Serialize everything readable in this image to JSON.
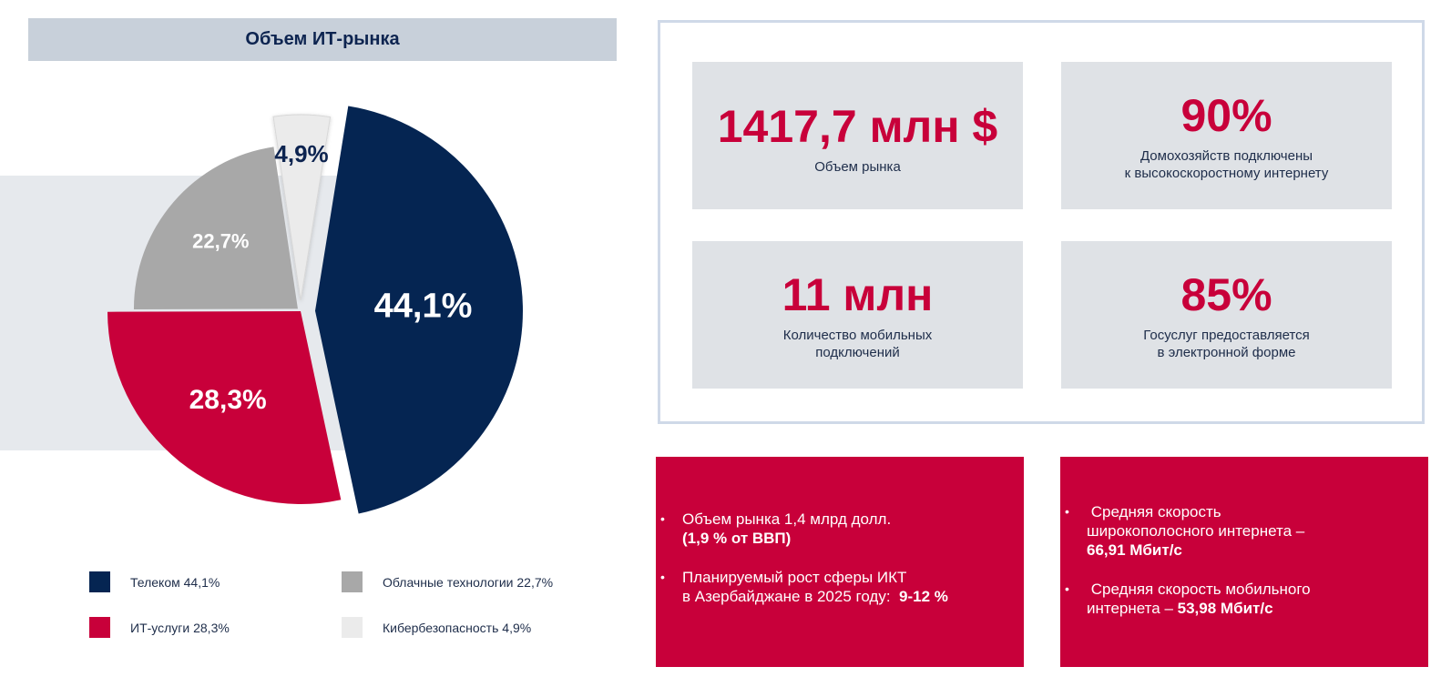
{
  "chart_data": {
    "type": "pie",
    "title": "Объем ИТ-рынка",
    "slices": [
      {
        "name": "Телеком",
        "value": 44.1,
        "label": "44,1%",
        "color": "#052552",
        "text_color": "#ffffff"
      },
      {
        "name": "ИТ-услуги",
        "value": 28.3,
        "label": "28,3%",
        "color": "#c8003a",
        "text_color": "#ffffff"
      },
      {
        "name": "Облачные технологии",
        "value": 22.7,
        "label": "22,7%",
        "color": "#a8a8a8",
        "text_color": "#ffffff"
      },
      {
        "name": "Кибербезопасность",
        "value": 4.9,
        "label": "4,9%",
        "color": "#ebebeb",
        "text_color": "#0d2450"
      }
    ],
    "legend": [
      {
        "label": "Телеком 44,1%",
        "color": "#052552"
      },
      {
        "label": "Облачные технологии 22,7%",
        "color": "#a8a8a8"
      },
      {
        "label": "ИТ-услуги 28,3%",
        "color": "#c8003a"
      },
      {
        "label": "Кибербезопасность 4,9%",
        "color": "#ebebeb"
      }
    ],
    "legend_position": "bottom"
  },
  "stats": [
    {
      "value": "1417,7 млн $",
      "label_lines": [
        "Объем рынка"
      ]
    },
    {
      "value": "90%",
      "label_lines": [
        "Домохозяйств подключены",
        "к  высокоскоростному интернету"
      ]
    },
    {
      "value": "11 млн",
      "label_lines": [
        "Количество мобильных",
        "подключений"
      ]
    },
    {
      "value": "85%",
      "label_lines": [
        "Госуслуг предоставляется",
        "в электронной форме"
      ]
    }
  ],
  "info_left": {
    "item1_line1": "Объем рынка 1,4 млрд долл.",
    "item1_bold": "(1,9 % от ВВП)",
    "item2_line1": "Планируемый рост сферы ИКТ",
    "item2_line2": "в Азербайджане в 2025 году:",
    "item2_bold": "9-12 %"
  },
  "info_right": {
    "item1_line1": "Средняя скорость",
    "item1_line2": "широкополосного интернета –",
    "item1_bold": "66,91 Мбит/с",
    "item2_line1": "Средняя скорость мобильного",
    "item2_line2": "интернета –",
    "item2_bold": "53,98 Мбит/с"
  },
  "colors": {
    "accent": "#c8003a",
    "navy": "#052552",
    "panel": "#dfe2e6"
  }
}
